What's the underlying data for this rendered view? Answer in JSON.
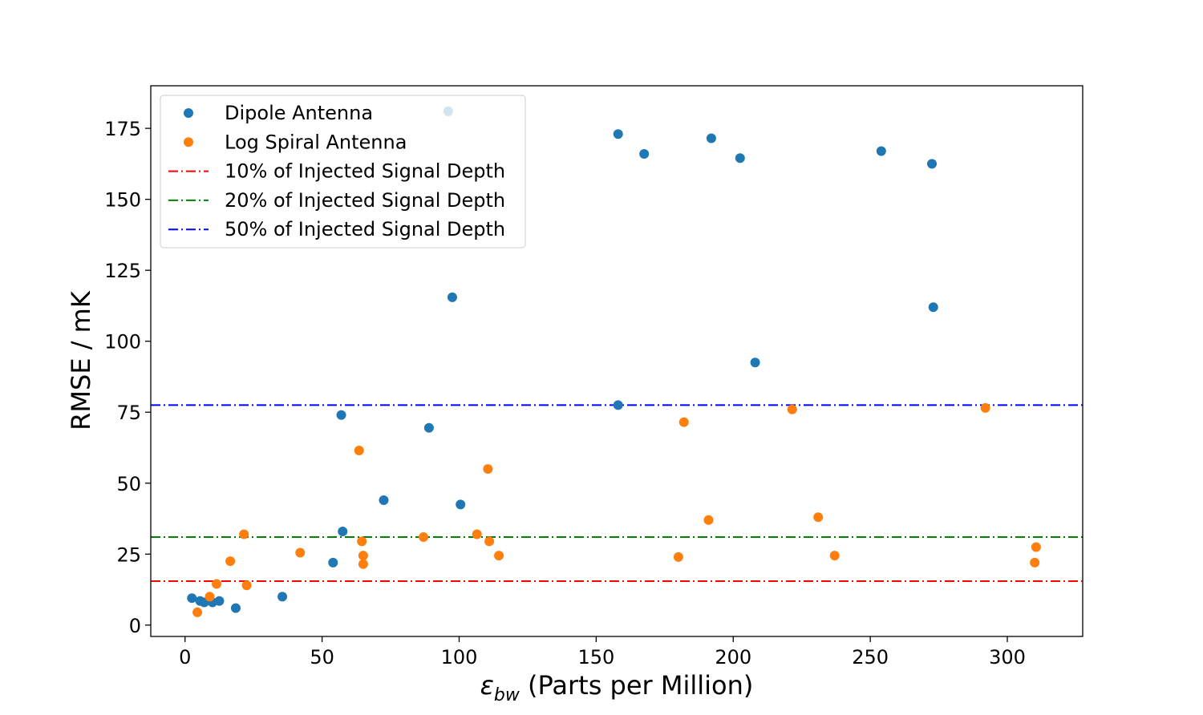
{
  "chart_data": {
    "type": "scatter",
    "xlabel_main": "ε",
    "xlabel_sub": "bw",
    "xlabel_rest": " (Parts per Million)",
    "ylabel": "RMSE / mK",
    "xlim": [
      -12.5,
      327.5
    ],
    "ylim": [
      -4,
      190
    ],
    "xticks": [
      0,
      50,
      100,
      150,
      200,
      250,
      300
    ],
    "yticks": [
      0,
      25,
      50,
      75,
      100,
      125,
      150,
      175
    ],
    "legend_position": "upper-left",
    "series": [
      {
        "name": "Dipole Antenna",
        "color": "#1f77b4",
        "points": [
          [
            2.5,
            9.5
          ],
          [
            5.5,
            8.5
          ],
          [
            7,
            8
          ],
          [
            10,
            8
          ],
          [
            12.5,
            8.5
          ],
          [
            18.5,
            6
          ],
          [
            35.5,
            10
          ],
          [
            54,
            22
          ],
          [
            57,
            74
          ],
          [
            57.5,
            33
          ],
          [
            72.5,
            44
          ],
          [
            89,
            69.5
          ],
          [
            97.5,
            115.5
          ],
          [
            96,
            181
          ],
          [
            100.5,
            42.5
          ],
          [
            158,
            77.5
          ],
          [
            158,
            173
          ],
          [
            167.5,
            166
          ],
          [
            192,
            171.5
          ],
          [
            202.5,
            164.5
          ],
          [
            208,
            92.5
          ],
          [
            254,
            167
          ],
          [
            272.5,
            162.5
          ],
          [
            273,
            112
          ]
        ]
      },
      {
        "name": "Log Spiral Antenna",
        "color": "#ff7f0e",
        "points": [
          [
            4.5,
            4.5
          ],
          [
            9,
            10
          ],
          [
            11.5,
            14.5
          ],
          [
            16.5,
            22.5
          ],
          [
            21.5,
            32
          ],
          [
            22.5,
            14
          ],
          [
            42,
            25.5
          ],
          [
            63.5,
            61.5
          ],
          [
            64.5,
            29.5
          ],
          [
            65,
            24.5
          ],
          [
            65,
            21.5
          ],
          [
            87,
            31
          ],
          [
            106.5,
            32
          ],
          [
            110.5,
            55
          ],
          [
            111,
            29.5
          ],
          [
            114.5,
            24.5
          ],
          [
            180,
            24
          ],
          [
            182,
            71.5
          ],
          [
            191,
            37
          ],
          [
            221.5,
            76
          ],
          [
            231,
            38
          ],
          [
            237,
            24.5
          ],
          [
            292,
            76.5
          ],
          [
            310.5,
            27.5
          ],
          [
            310,
            22
          ]
        ]
      }
    ],
    "hlines": [
      {
        "name": "10% of Injected Signal Depth",
        "y": 15.5,
        "color": "#ff0000"
      },
      {
        "name": "20% of Injected Signal Depth",
        "y": 31,
        "color": "#008000"
      },
      {
        "name": "50% of Injected Signal Depth",
        "y": 77.5,
        "color": "#0000ff"
      }
    ]
  }
}
